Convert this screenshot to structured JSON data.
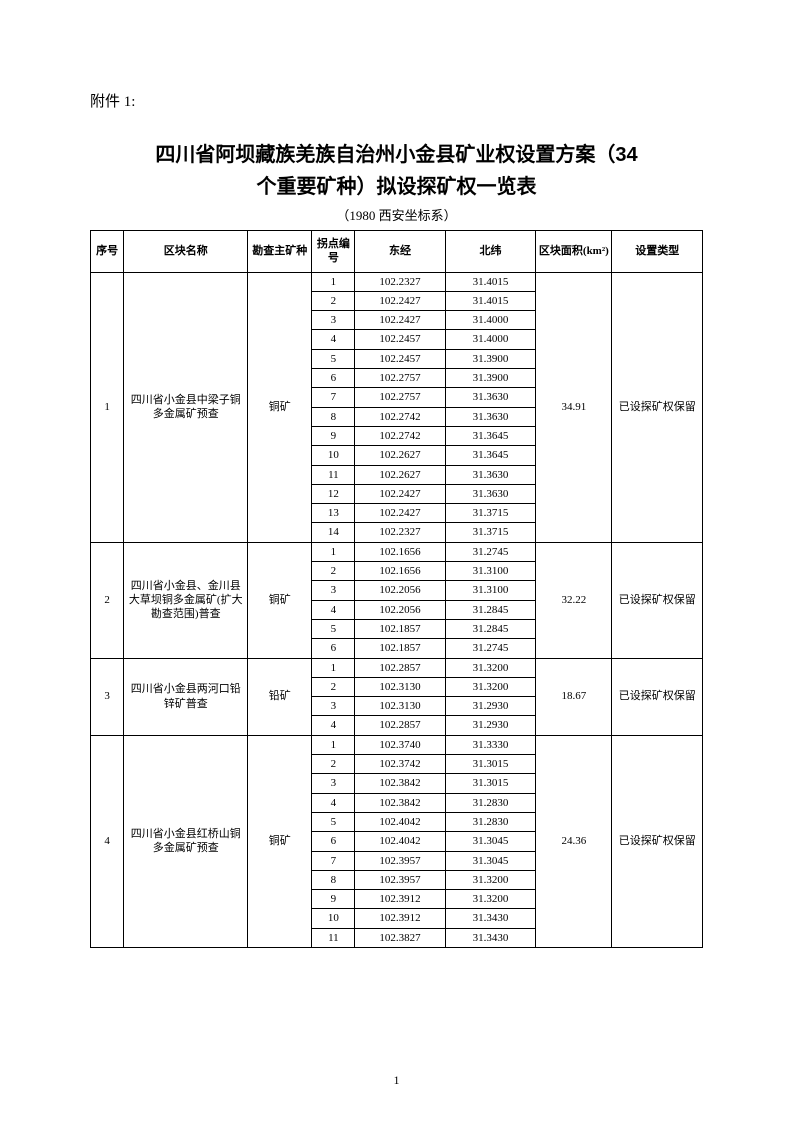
{
  "attachment_label": "附件 1:",
  "title_line1": "四川省阿坝藏族羌族自治州小金县矿业权设置方案（34",
  "title_line2": "个重要矿种）拟设探矿权一览表",
  "subtitle": "（1980 西安坐标系）",
  "page_number": "1",
  "columns": {
    "seq": "序号",
    "block_name": "区块名称",
    "mineral": "勘查主矿种",
    "point_no": "拐点编号",
    "longitude": "东经",
    "latitude": "北纬",
    "area": "区块面积(km²)",
    "type": "设置类型"
  },
  "blocks": [
    {
      "seq": "1",
      "block_name": "四川省小金县中梁子铜多金属矿预查",
      "mineral": "铜矿",
      "area": "34.91",
      "type": "已设探矿权保留",
      "points": [
        {
          "no": "1",
          "lon": "102.2327",
          "lat": "31.4015"
        },
        {
          "no": "2",
          "lon": "102.2427",
          "lat": "31.4015"
        },
        {
          "no": "3",
          "lon": "102.2427",
          "lat": "31.4000"
        },
        {
          "no": "4",
          "lon": "102.2457",
          "lat": "31.4000"
        },
        {
          "no": "5",
          "lon": "102.2457",
          "lat": "31.3900"
        },
        {
          "no": "6",
          "lon": "102.2757",
          "lat": "31.3900"
        },
        {
          "no": "7",
          "lon": "102.2757",
          "lat": "31.3630"
        },
        {
          "no": "8",
          "lon": "102.2742",
          "lat": "31.3630"
        },
        {
          "no": "9",
          "lon": "102.2742",
          "lat": "31.3645"
        },
        {
          "no": "10",
          "lon": "102.2627",
          "lat": "31.3645"
        },
        {
          "no": "11",
          "lon": "102.2627",
          "lat": "31.3630"
        },
        {
          "no": "12",
          "lon": "102.2427",
          "lat": "31.3630"
        },
        {
          "no": "13",
          "lon": "102.2427",
          "lat": "31.3715"
        },
        {
          "no": "14",
          "lon": "102.2327",
          "lat": "31.3715"
        }
      ]
    },
    {
      "seq": "2",
      "block_name": "四川省小金县、金川县大草坝铜多金属矿(扩大勘查范围)普查",
      "mineral": "铜矿",
      "area": "32.22",
      "type": "已设探矿权保留",
      "points": [
        {
          "no": "1",
          "lon": "102.1656",
          "lat": "31.2745"
        },
        {
          "no": "2",
          "lon": "102.1656",
          "lat": "31.3100"
        },
        {
          "no": "3",
          "lon": "102.2056",
          "lat": "31.3100"
        },
        {
          "no": "4",
          "lon": "102.2056",
          "lat": "31.2845"
        },
        {
          "no": "5",
          "lon": "102.1857",
          "lat": "31.2845"
        },
        {
          "no": "6",
          "lon": "102.1857",
          "lat": "31.2745"
        }
      ]
    },
    {
      "seq": "3",
      "block_name": "四川省小金县两河口铅锌矿普查",
      "mineral": "铅矿",
      "area": "18.67",
      "type": "已设探矿权保留",
      "points": [
        {
          "no": "1",
          "lon": "102.2857",
          "lat": "31.3200"
        },
        {
          "no": "2",
          "lon": "102.3130",
          "lat": "31.3200"
        },
        {
          "no": "3",
          "lon": "102.3130",
          "lat": "31.2930"
        },
        {
          "no": "4",
          "lon": "102.2857",
          "lat": "31.2930"
        }
      ]
    },
    {
      "seq": "4",
      "block_name": "四川省小金县红桥山铜多金属矿预查",
      "mineral": "铜矿",
      "area": "24.36",
      "type": "已设探矿权保留",
      "points": [
        {
          "no": "1",
          "lon": "102.3740",
          "lat": "31.3330"
        },
        {
          "no": "2",
          "lon": "102.3742",
          "lat": "31.3015"
        },
        {
          "no": "3",
          "lon": "102.3842",
          "lat": "31.3015"
        },
        {
          "no": "4",
          "lon": "102.3842",
          "lat": "31.2830"
        },
        {
          "no": "5",
          "lon": "102.4042",
          "lat": "31.2830"
        },
        {
          "no": "6",
          "lon": "102.4042",
          "lat": "31.3045"
        },
        {
          "no": "7",
          "lon": "102.3957",
          "lat": "31.3045"
        },
        {
          "no": "8",
          "lon": "102.3957",
          "lat": "31.3200"
        },
        {
          "no": "9",
          "lon": "102.3912",
          "lat": "31.3200"
        },
        {
          "no": "10",
          "lon": "102.3912",
          "lat": "31.3430"
        },
        {
          "no": "11",
          "lon": "102.3827",
          "lat": "31.3430"
        }
      ]
    }
  ]
}
